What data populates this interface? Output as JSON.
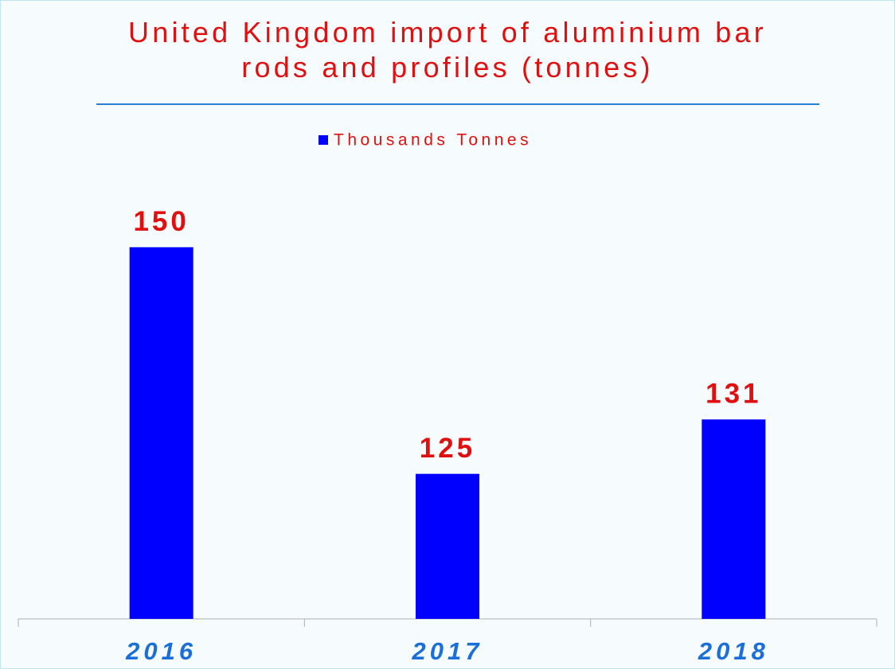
{
  "chart_data": {
    "type": "bar",
    "title": "United Kingdom import of aluminium bar rods and profiles (tonnes)",
    "categories": [
      "2016",
      "2017",
      "2018"
    ],
    "series": [
      {
        "name": "Thousands Tonnes",
        "color": "#0000ff",
        "values": [
          150,
          125,
          131
        ]
      }
    ],
    "ylim": [
      109,
      157
    ]
  }
}
